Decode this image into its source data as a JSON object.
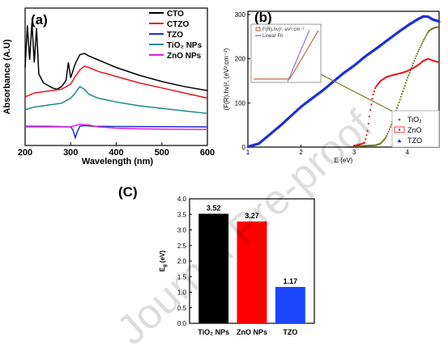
{
  "watermark": "Journal Pre-proof",
  "chart_data": [
    {
      "panel": "(a)",
      "type": "line",
      "xlabel": "Wavelength (nm)",
      "ylabel": "Absorbance (A.U)",
      "xlim": [
        200,
        600
      ],
      "xticks": [
        200,
        300,
        400,
        500,
        600
      ],
      "yticks_shown": false,
      "legend_position": "top-right",
      "series": [
        {
          "name": "CTO",
          "color": "#000000",
          "x": [
            200,
            205,
            210,
            215,
            220,
            225,
            230,
            240,
            250,
            260,
            270,
            280,
            290,
            295,
            300,
            310,
            320,
            330,
            340,
            360,
            380,
            400,
            450,
            500,
            550,
            600
          ],
          "y": [
            5.6,
            8.9,
            6.2,
            9.1,
            6.0,
            8.7,
            5.1,
            4.4,
            4.2,
            4.0,
            3.9,
            4.1,
            4.6,
            6.0,
            4.8,
            5.9,
            6.6,
            6.7,
            6.5,
            6.2,
            5.9,
            5.6,
            5.0,
            4.5,
            4.1,
            3.8
          ]
        },
        {
          "name": "CTZO",
          "color": "#e8141b",
          "x": [
            200,
            220,
            240,
            260,
            280,
            300,
            310,
            320,
            330,
            340,
            360,
            380,
            400,
            450,
            500,
            550,
            600
          ],
          "y": [
            3.3,
            3.6,
            3.7,
            3.8,
            3.9,
            4.3,
            4.9,
            5.4,
            5.7,
            5.6,
            5.3,
            5.1,
            4.9,
            4.4,
            4.0,
            3.6,
            3.2
          ]
        },
        {
          "name": "TZO",
          "color": "#1a2fd0",
          "x": [
            200,
            250,
            300,
            305,
            310,
            315,
            320,
            330,
            350,
            400,
            500,
            600
          ],
          "y": [
            1.0,
            1.0,
            0.95,
            0.7,
            0.1,
            0.6,
            1.0,
            1.05,
            1.0,
            0.98,
            0.97,
            0.95
          ]
        },
        {
          "name": "TiO₂ NPs",
          "color": "#1f8a8a",
          "x": [
            200,
            220,
            240,
            260,
            280,
            300,
            310,
            320,
            330,
            340,
            360,
            400,
            450,
            500,
            550,
            600
          ],
          "y": [
            2.3,
            2.5,
            2.6,
            2.7,
            2.8,
            3.2,
            3.6,
            4.1,
            3.9,
            3.5,
            3.2,
            2.9,
            2.6,
            2.4,
            2.2,
            2.0
          ]
        },
        {
          "name": "ZnO NPs",
          "color": "#e020e0",
          "x": [
            200,
            250,
            300,
            320,
            340,
            360,
            380,
            400,
            450,
            500,
            550,
            600
          ],
          "y": [
            0.95,
            0.95,
            0.95,
            1.15,
            1.1,
            0.95,
            0.9,
            0.85,
            0.8,
            0.78,
            0.76,
            0.75
          ]
        }
      ]
    },
    {
      "panel": "(b)",
      "type": "line",
      "xlabel": "E (eV)",
      "ylabel": "(F(R).hv)², (eV².cm⁻²)",
      "xlim": [
        1,
        4.6
      ],
      "ylim": [
        0,
        300
      ],
      "xticks": [
        1,
        2,
        3,
        4
      ],
      "yticks": [
        0,
        100,
        200,
        300
      ],
      "legend_position": "bottom-right",
      "series": [
        {
          "name": "TiO₂",
          "color": "#6b7a1a",
          "marker": "dot",
          "x": [
            3.0,
            3.4,
            3.5,
            3.6,
            3.7,
            3.8,
            3.9,
            4.0,
            4.1,
            4.2,
            4.3,
            4.4,
            4.5,
            4.6
          ],
          "y": [
            2,
            4,
            8,
            22,
            50,
            85,
            120,
            155,
            185,
            215,
            240,
            262,
            270,
            272
          ]
        },
        {
          "name": "ZnO",
          "color": "#e8141b",
          "marker": "dot",
          "x": [
            3.0,
            3.2,
            3.25,
            3.3,
            3.35,
            3.4,
            3.5,
            3.6,
            3.7,
            3.8,
            3.9,
            4.0,
            4.1,
            4.2,
            4.3,
            4.4,
            4.5,
            4.6
          ],
          "y": [
            2,
            10,
            35,
            80,
            115,
            135,
            150,
            158,
            162,
            165,
            168,
            172,
            178,
            185,
            195,
            200,
            195,
            192
          ]
        },
        {
          "name": "TZO",
          "color": "#1a2fd0",
          "marker": "triangle",
          "x": [
            1.0,
            1.2,
            1.4,
            1.6,
            1.8,
            2.0,
            2.2,
            2.4,
            2.6,
            2.8,
            3.0,
            3.2,
            3.4,
            3.6,
            3.8,
            4.0,
            4.2,
            4.3,
            4.4,
            4.5,
            4.6
          ],
          "y": [
            1,
            8,
            28,
            48,
            70,
            92,
            110,
            128,
            148,
            168,
            185,
            205,
            222,
            240,
            258,
            275,
            290,
            296,
            295,
            288,
            285
          ]
        }
      ],
      "inset": {
        "legend": [
          "F(R).hν)², eV².cm⁻²",
          "Linear Fit"
        ],
        "colors": [
          "#c25b2b",
          "#7a3fb0"
        ]
      },
      "annotation_color": "#7a7a1a"
    },
    {
      "panel": "(C)",
      "type": "bar",
      "categories": [
        "TiO₂ NPs",
        "ZnO NPs",
        "TZO"
      ],
      "values": [
        3.52,
        3.27,
        1.17
      ],
      "value_labels": [
        "3.52",
        "3.27",
        "1.17"
      ],
      "colors": [
        "#000000",
        "#ff0000",
        "#1a47ff"
      ],
      "ylabel": "E",
      "ylabel_sub": "g",
      "ylabel_unit": "(eV)",
      "ylim": [
        0,
        4.0
      ],
      "yticks": [
        0.0,
        0.5,
        1.0,
        1.5,
        2.0,
        2.5,
        3.0,
        3.5,
        4.0
      ],
      "ytick_labels": [
        "0.0",
        "0.5",
        "1.0",
        "1.5",
        "2.0",
        "2.5",
        "3.0",
        "3.5",
        "4.0"
      ]
    }
  ]
}
